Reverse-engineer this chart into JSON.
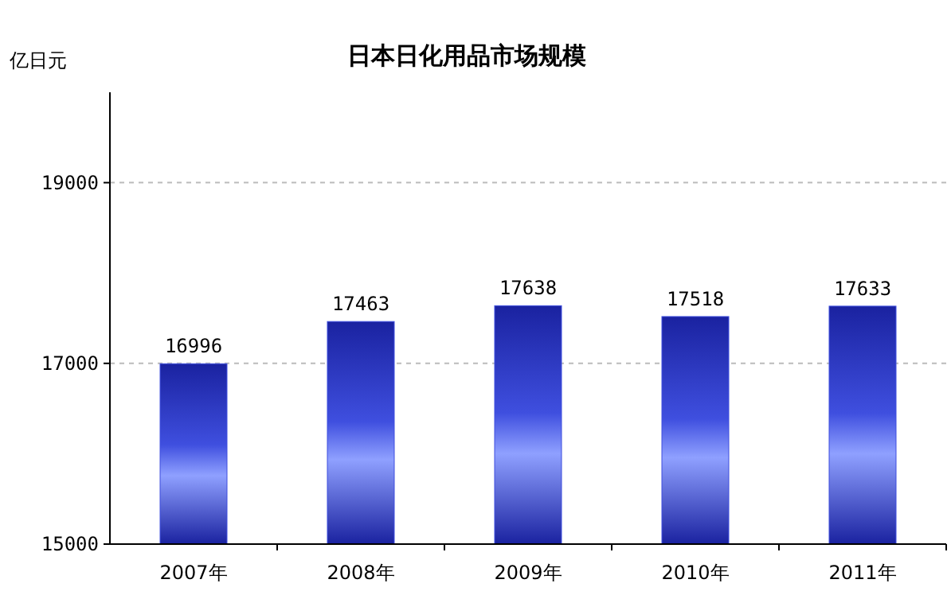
{
  "chart_data": {
    "type": "bar",
    "title": "日本日化用品市场规模",
    "ylabel": "亿日元",
    "categories": [
      "2007年",
      "2008年",
      "2009年",
      "2010年",
      "2011年"
    ],
    "values": [
      16996,
      17463,
      17638,
      17518,
      17633
    ],
    "color": "#3f4fdf",
    "ylim": [
      15000,
      20000
    ],
    "yticks": [
      15000,
      17000,
      19000
    ],
    "grid": "y",
    "data_labels": true
  }
}
